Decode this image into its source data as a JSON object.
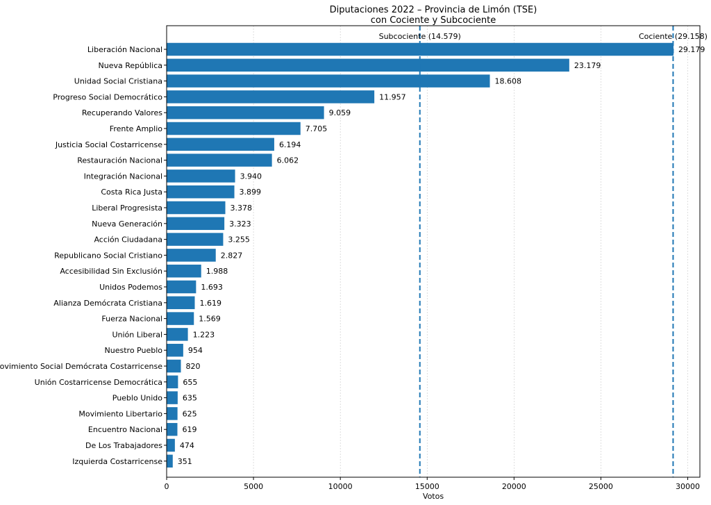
{
  "chart_data": {
    "type": "bar",
    "orientation": "horizontal",
    "title": "Diputaciones 2022 – Provincia de Limón (TSE)",
    "subtitle": "con Cociente y Subcociente",
    "xlabel": "Votos",
    "ylabel": "",
    "xlim": [
      0,
      30700
    ],
    "xticks": [
      0,
      5000,
      10000,
      15000,
      20000,
      25000,
      30000
    ],
    "grid": "vertical",
    "bar_color": "#1f77b4",
    "categories": [
      "Liberación Nacional",
      "Nueva República",
      "Unidad Social Cristiana",
      "Progreso Social Democrático",
      "Recuperando Valores",
      "Frente Amplio",
      "Justicia Social Costarricense",
      "Restauración Nacional",
      "Integración Nacional",
      "Costa Rica Justa",
      "Liberal Progresista",
      "Nueva Generación",
      "Acción Ciudadana",
      "Republicano Social Cristiano",
      "Accesibilidad Sin Exclusión",
      "Unidos Podemos",
      "Alianza Demócrata Cristiana",
      "Fuerza Nacional",
      "Unión Liberal",
      "Nuestro Pueblo",
      "Movimiento Social Demócrata Costarricense",
      "Unión Costarricense Democrática",
      "Pueblo Unido",
      "Movimiento Libertario",
      "Encuentro Nacional",
      "De Los Trabajadores",
      "Izquierda Costarricense"
    ],
    "values": [
      29179,
      23179,
      18608,
      11957,
      9059,
      7705,
      6194,
      6062,
      3940,
      3899,
      3378,
      3323,
      3255,
      2827,
      1988,
      1693,
      1619,
      1569,
      1223,
      954,
      820,
      655,
      635,
      625,
      619,
      474,
      351
    ],
    "value_labels": [
      "29.179",
      "23.179",
      "18.608",
      "11.957",
      "9.059",
      "7.705",
      "6.194",
      "6.062",
      "3.940",
      "3.899",
      "3.378",
      "3.323",
      "3.255",
      "2.827",
      "1.988",
      "1.693",
      "1.619",
      "1.569",
      "1.223",
      "954",
      "820",
      "655",
      "635",
      "625",
      "619",
      "474",
      "351"
    ],
    "reference_lines": [
      {
        "label": "Subcociente (14.579)",
        "value": 14579
      },
      {
        "label": "Cociente (29.158)",
        "value": 29158
      }
    ],
    "reference_line_style": "dashed"
  }
}
